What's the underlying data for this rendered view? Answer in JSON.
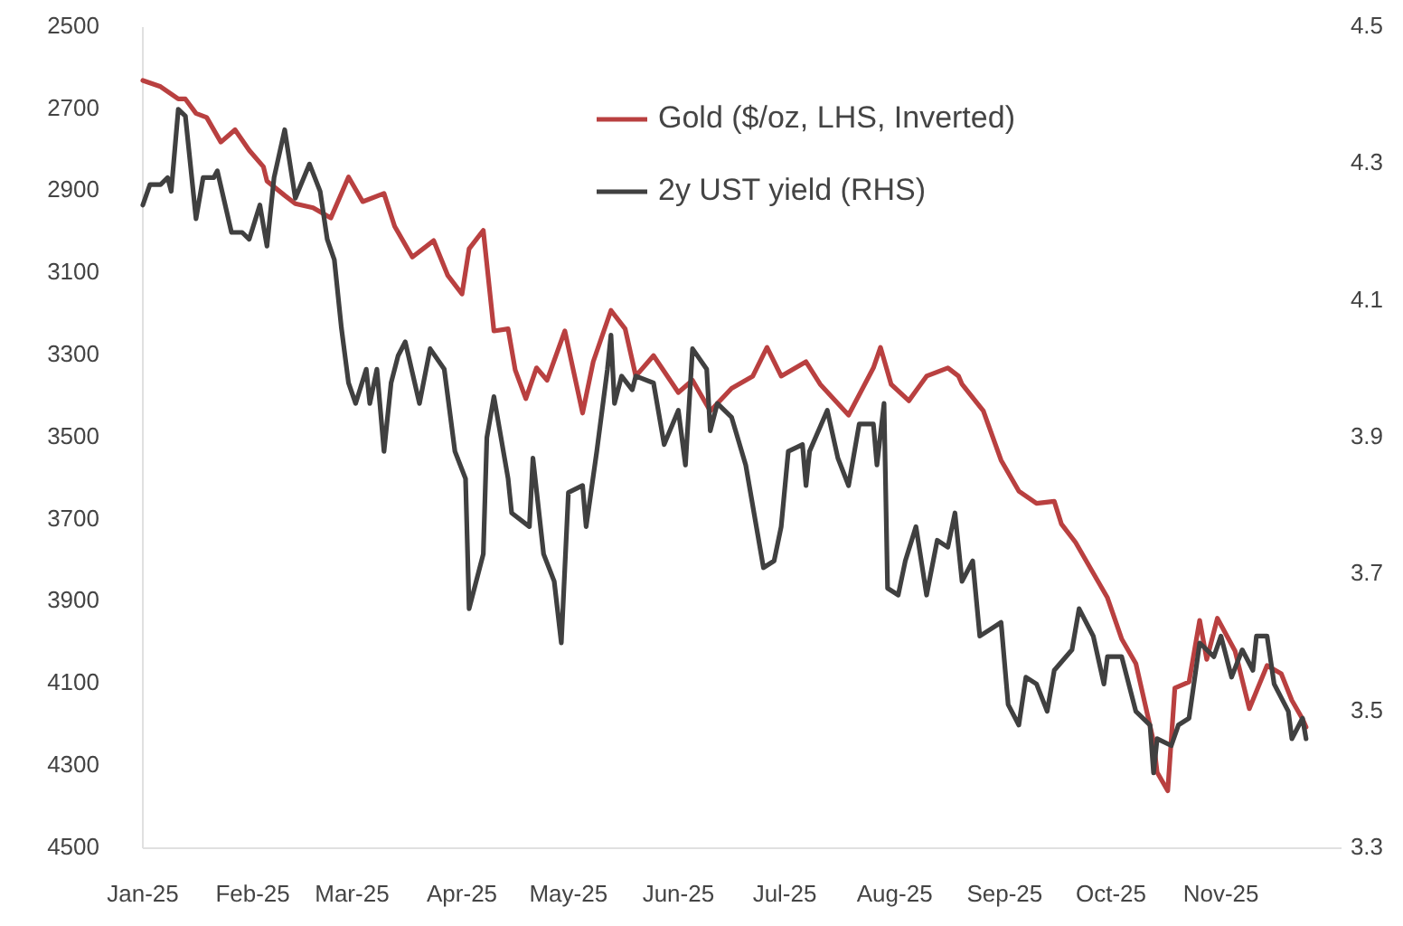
{
  "chart_data": {
    "type": "line",
    "xlim": [
      "2025-01-01",
      "2025-12-05"
    ],
    "xticks": [
      {
        "value": "2025-01-01",
        "label": "Jan-25"
      },
      {
        "value": "2025-02-01",
        "label": "Feb-25"
      },
      {
        "value": "2025-03-01",
        "label": "Mar-25"
      },
      {
        "value": "2025-04-01",
        "label": "Apr-25"
      },
      {
        "value": "2025-05-01",
        "label": "May-25"
      },
      {
        "value": "2025-06-01",
        "label": "Jun-25"
      },
      {
        "value": "2025-07-01",
        "label": "Jul-25"
      },
      {
        "value": "2025-08-01",
        "label": "Aug-25"
      },
      {
        "value": "2025-09-01",
        "label": "Sep-25"
      },
      {
        "value": "2025-10-01",
        "label": "Oct-25"
      },
      {
        "value": "2025-11-01",
        "label": "Nov-25"
      }
    ],
    "ylim": [
      4500,
      2500
    ],
    "yticks": [
      2500,
      2700,
      2900,
      3100,
      3300,
      3500,
      3700,
      3900,
      4100,
      4300,
      4500
    ],
    "y2lim": [
      3.3,
      4.5
    ],
    "y2ticks": [
      {
        "value": 3.3,
        "label": "3.3"
      },
      {
        "value": 3.5,
        "label": "3.5"
      },
      {
        "value": 3.7,
        "label": "3.7"
      },
      {
        "value": 3.9,
        "label": "3.9"
      },
      {
        "value": 4.1,
        "label": "4.1"
      },
      {
        "value": 4.3,
        "label": "4.3"
      },
      {
        "value": 4.5,
        "label": "4.5"
      }
    ],
    "grid": false,
    "legend": "top right",
    "line_style": "solid",
    "marker": "none",
    "series": [
      {
        "name": "Gold ($/oz, LHS, Inverted)",
        "color": "#b94040",
        "x": [
          "2025-01-01",
          "2025-01-06",
          "2025-01-11",
          "2025-01-13",
          "2025-01-16",
          "2025-01-19",
          "2025-01-23",
          "2025-01-27",
          "2025-01-31",
          "2025-02-04",
          "2025-02-05",
          "2025-02-10",
          "2025-02-13",
          "2025-02-18",
          "2025-02-23",
          "2025-02-28",
          "2025-03-04",
          "2025-03-10",
          "2025-03-13",
          "2025-03-18",
          "2025-03-24",
          "2025-03-28",
          "2025-04-01",
          "2025-04-03",
          "2025-04-07",
          "2025-04-10",
          "2025-04-14",
          "2025-04-16",
          "2025-04-19",
          "2025-04-22",
          "2025-04-25",
          "2025-04-30",
          "2025-05-05",
          "2025-05-08",
          "2025-05-13",
          "2025-05-17",
          "2025-05-20",
          "2025-05-25",
          "2025-06-01",
          "2025-06-05",
          "2025-06-10",
          "2025-06-16",
          "2025-06-22",
          "2025-06-26",
          "2025-06-30",
          "2025-07-07",
          "2025-07-11",
          "2025-07-19",
          "2025-07-26",
          "2025-07-28",
          "2025-07-31",
          "2025-08-05",
          "2025-08-10",
          "2025-08-16",
          "2025-08-19",
          "2025-08-20",
          "2025-08-26",
          "2025-08-31",
          "2025-09-05",
          "2025-09-10",
          "2025-09-15",
          "2025-09-17",
          "2025-09-21",
          "2025-09-25",
          "2025-09-30",
          "2025-10-04",
          "2025-10-08",
          "2025-10-13",
          "2025-10-14",
          "2025-10-17",
          "2025-10-19",
          "2025-10-23",
          "2025-10-26",
          "2025-10-28",
          "2025-10-31",
          "2025-11-05",
          "2025-11-09",
          "2025-11-14",
          "2025-11-18",
          "2025-11-21",
          "2025-11-24",
          "2025-11-25"
        ],
        "values": [
          2630,
          2645,
          2675,
          2675,
          2710,
          2720,
          2780,
          2750,
          2800,
          2840,
          2875,
          2910,
          2930,
          2940,
          2965,
          2865,
          2925,
          2905,
          2985,
          3060,
          3020,
          3105,
          3150,
          3040,
          2995,
          3240,
          3235,
          3335,
          3405,
          3330,
          3360,
          3240,
          3440,
          3315,
          3190,
          3235,
          3350,
          3300,
          3390,
          3360,
          3435,
          3380,
          3350,
          3280,
          3350,
          3315,
          3370,
          3445,
          3330,
          3280,
          3370,
          3410,
          3350,
          3330,
          3350,
          3370,
          3435,
          3555,
          3630,
          3660,
          3655,
          3710,
          3755,
          3815,
          3890,
          3990,
          4050,
          4240,
          4315,
          4360,
          4110,
          4095,
          3945,
          4040,
          3940,
          4020,
          4160,
          4055,
          4075,
          4140,
          4185,
          4205
        ]
      },
      {
        "name": "2y UST yield (RHS)",
        "color": "#404040",
        "axis": "y2",
        "x": [
          "2025-01-01",
          "2025-01-03",
          "2025-01-06",
          "2025-01-08",
          "2025-01-09",
          "2025-01-11",
          "2025-01-13",
          "2025-01-16",
          "2025-01-18",
          "2025-01-21",
          "2025-01-22",
          "2025-01-26",
          "2025-01-29",
          "2025-01-31",
          "2025-02-03",
          "2025-02-05",
          "2025-02-07",
          "2025-02-10",
          "2025-02-13",
          "2025-02-17",
          "2025-02-20",
          "2025-02-22",
          "2025-02-24",
          "2025-02-26",
          "2025-02-28",
          "2025-03-02",
          "2025-03-05",
          "2025-03-06",
          "2025-03-08",
          "2025-03-10",
          "2025-03-12",
          "2025-03-14",
          "2025-03-16",
          "2025-03-20",
          "2025-03-23",
          "2025-03-27",
          "2025-03-30",
          "2025-04-02",
          "2025-04-03",
          "2025-04-07",
          "2025-04-08",
          "2025-04-10",
          "2025-04-14",
          "2025-04-15",
          "2025-04-20",
          "2025-04-21",
          "2025-04-24",
          "2025-04-27",
          "2025-04-29",
          "2025-05-01",
          "2025-05-05",
          "2025-05-06",
          "2025-05-09",
          "2025-05-12",
          "2025-05-13",
          "2025-05-14",
          "2025-05-16",
          "2025-05-19",
          "2025-05-20",
          "2025-05-25",
          "2025-05-28",
          "2025-06-01",
          "2025-06-03",
          "2025-06-05",
          "2025-06-09",
          "2025-06-10",
          "2025-06-12",
          "2025-06-16",
          "2025-06-20",
          "2025-06-25",
          "2025-06-28",
          "2025-06-30",
          "2025-07-02",
          "2025-07-06",
          "2025-07-07",
          "2025-07-08",
          "2025-07-13",
          "2025-07-16",
          "2025-07-19",
          "2025-07-22",
          "2025-07-26",
          "2025-07-27",
          "2025-07-29",
          "2025-07-30",
          "2025-08-02",
          "2025-08-04",
          "2025-08-07",
          "2025-08-10",
          "2025-08-13",
          "2025-08-16",
          "2025-08-18",
          "2025-08-20",
          "2025-08-23",
          "2025-08-25",
          "2025-08-28",
          "2025-08-31",
          "2025-09-02",
          "2025-09-05",
          "2025-09-07",
          "2025-09-10",
          "2025-09-13",
          "2025-09-15",
          "2025-09-20",
          "2025-09-22",
          "2025-09-26",
          "2025-09-29",
          "2025-09-30",
          "2025-10-04",
          "2025-10-08",
          "2025-10-12",
          "2025-10-13",
          "2025-10-14",
          "2025-10-18",
          "2025-10-20",
          "2025-10-23",
          "2025-10-26",
          "2025-10-30",
          "2025-11-01",
          "2025-11-04",
          "2025-11-07",
          "2025-11-10",
          "2025-11-11",
          "2025-11-14",
          "2025-11-16",
          "2025-11-20",
          "2025-11-21",
          "2025-11-24",
          "2025-11-25"
        ],
        "values": [
          4.24,
          4.27,
          4.27,
          4.28,
          4.26,
          4.38,
          4.37,
          4.22,
          4.28,
          4.28,
          4.29,
          4.2,
          4.2,
          4.19,
          4.24,
          4.18,
          4.28,
          4.35,
          4.25,
          4.3,
          4.26,
          4.19,
          4.16,
          4.06,
          3.98,
          3.95,
          4.0,
          3.95,
          4.0,
          3.88,
          3.98,
          4.02,
          4.04,
          3.95,
          4.03,
          4.0,
          3.88,
          3.84,
          3.65,
          3.73,
          3.9,
          3.96,
          3.84,
          3.79,
          3.77,
          3.87,
          3.73,
          3.69,
          3.6,
          3.82,
          3.83,
          3.77,
          3.88,
          4.0,
          4.05,
          3.95,
          3.99,
          3.97,
          3.99,
          3.98,
          3.89,
          3.94,
          3.86,
          4.03,
          4.0,
          3.91,
          3.95,
          3.93,
          3.86,
          3.71,
          3.72,
          3.77,
          3.88,
          3.89,
          3.83,
          3.88,
          3.94,
          3.87,
          3.83,
          3.92,
          3.92,
          3.86,
          3.95,
          3.68,
          3.67,
          3.72,
          3.77,
          3.67,
          3.75,
          3.74,
          3.79,
          3.69,
          3.72,
          3.61,
          3.62,
          3.63,
          3.51,
          3.48,
          3.55,
          3.54,
          3.5,
          3.56,
          3.59,
          3.65,
          3.61,
          3.54,
          3.58,
          3.58,
          3.5,
          3.48,
          3.41,
          3.46,
          3.45,
          3.48,
          3.49,
          3.6,
          3.58,
          3.61,
          3.55,
          3.59,
          3.56,
          3.61,
          3.61,
          3.54,
          3.5,
          3.46,
          3.49,
          3.46
        ]
      }
    ]
  }
}
